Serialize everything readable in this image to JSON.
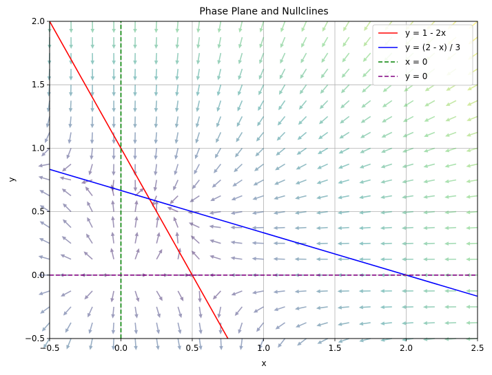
{
  "chart_data": {
    "type": "line",
    "title": "Phase Plane and Nullclines",
    "xlabel": "x",
    "ylabel": "y",
    "xlim": [
      -0.5,
      2.5
    ],
    "ylim": [
      -0.5,
      2.0
    ],
    "xticks": [
      -0.5,
      0.0,
      0.5,
      1.0,
      1.5,
      2.0,
      2.5
    ],
    "xtick_labels": [
      "−0.5",
      "0.0",
      "0.5",
      "1.0",
      "1.5",
      "2.0",
      "2.5"
    ],
    "yticks": [
      -0.5,
      0.0,
      0.5,
      1.0,
      1.5,
      2.0
    ],
    "ytick_labels": [
      "−0.5",
      "0.0",
      "0.5",
      "1.0",
      "1.5",
      "2.0"
    ],
    "grid": true,
    "legend_position": "top-right",
    "series": [
      {
        "name": "y = 1 - 2x",
        "color": "#ff0000",
        "dash": "solid",
        "x": [
          -0.5,
          0.75
        ],
        "y": [
          2.0,
          -0.5
        ]
      },
      {
        "name": "y = (2 - x) / 3",
        "color": "#0000ff",
        "dash": "solid",
        "x": [
          -0.5,
          2.5
        ],
        "y": [
          0.8333,
          -0.1667
        ]
      },
      {
        "name": "x = 0",
        "color": "#008000",
        "dash": "dashed",
        "x": [
          0,
          0
        ],
        "y": [
          -0.5,
          2.0
        ]
      },
      {
        "name": "y = 0",
        "color": "#800080",
        "dash": "dashed",
        "x": [
          -0.5,
          2.5
        ],
        "y": [
          0,
          0
        ]
      }
    ],
    "vector_field": {
      "x_start": -0.5,
      "x_step": 0.15,
      "nx": 21,
      "y_start": -0.5,
      "y_step": 0.125,
      "ny": 21,
      "dx_expr": "x*(1 - 2x - y)",
      "dy_expr": "y*(2 - x - 3y)",
      "colormap": "viridis",
      "alpha": 0.5
    }
  }
}
